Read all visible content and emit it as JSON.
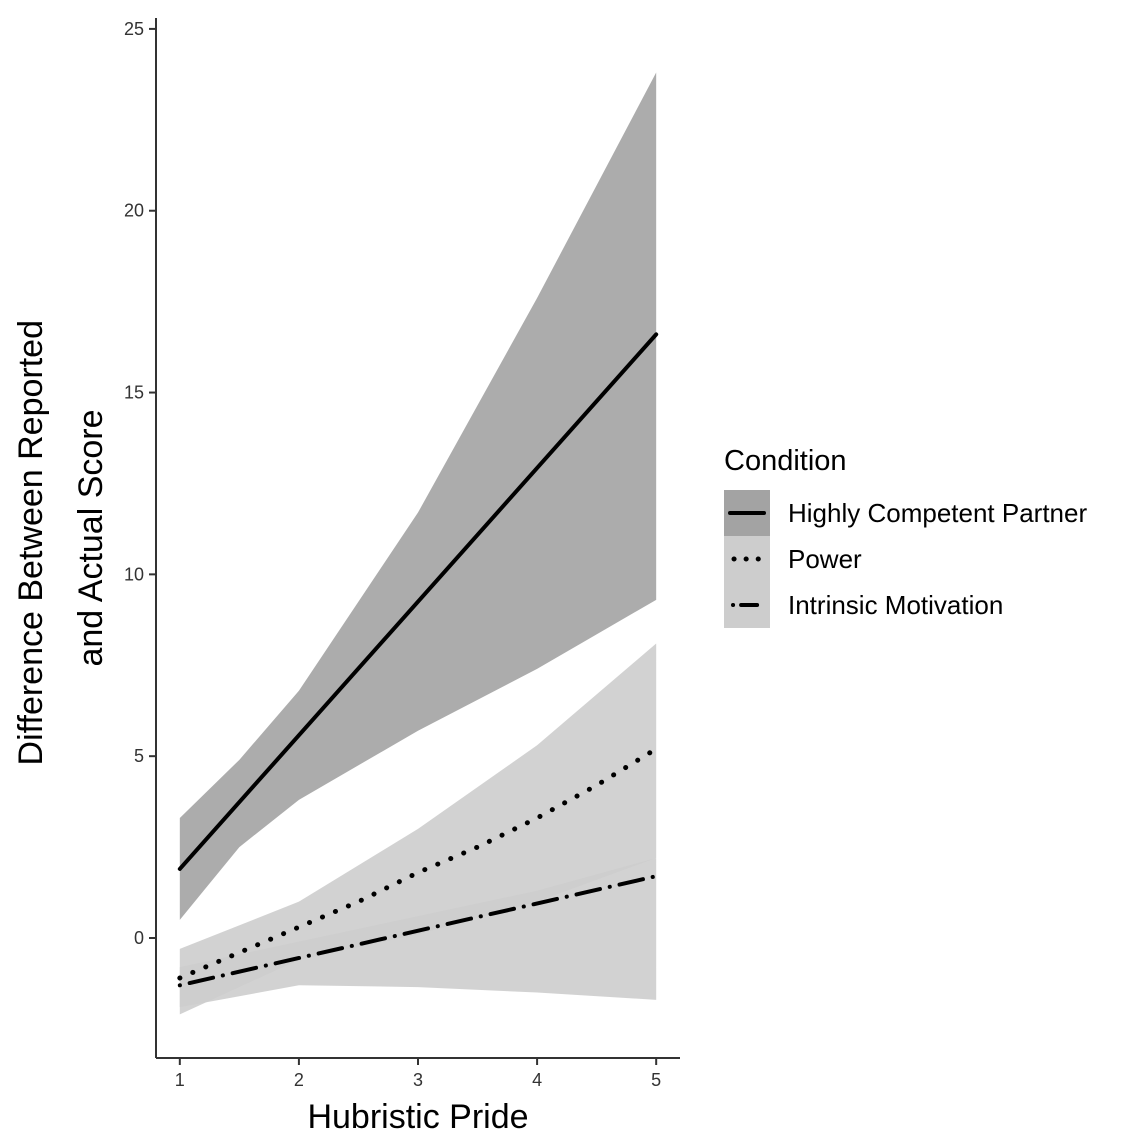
{
  "chart_data": {
    "type": "line",
    "title": "",
    "xlabel": "Hubristic Pride",
    "ylabel_lines": [
      "Difference Between Reported",
      "and Actual Score"
    ],
    "xlim": [
      0.8,
      5.2
    ],
    "ylim": [
      -3.3,
      25.3
    ],
    "x_ticks": [
      1,
      2,
      3,
      4,
      5
    ],
    "y_ticks": [
      0,
      5,
      10,
      15,
      20,
      25
    ],
    "grid": false,
    "legend": {
      "title": "Condition",
      "placement": "right"
    },
    "series": [
      {
        "name": "Highly Competent Partner",
        "linetype": "solid",
        "band_color": "#a3a3a3",
        "x": [
          1,
          5
        ],
        "y": [
          1.9,
          16.6
        ],
        "ci_x": [
          1,
          1.5,
          2,
          3,
          4,
          5
        ],
        "ci_lower": [
          0.5,
          2.5,
          3.8,
          5.7,
          7.4,
          9.3
        ],
        "ci_upper": [
          3.3,
          4.9,
          6.8,
          11.7,
          17.6,
          23.8
        ]
      },
      {
        "name": "Power",
        "linetype": "dotted",
        "band_color": "#cdcdcd",
        "x": [
          1,
          1.5,
          2,
          2.5,
          3,
          3.5,
          4,
          4.5,
          5
        ],
        "y": [
          -1.1,
          -0.4,
          0.3,
          1.0,
          1.8,
          2.5,
          3.3,
          4.2,
          5.2
        ],
        "ci_x": [
          1,
          2,
          3,
          4,
          5
        ],
        "ci_lower": [
          -2.1,
          -0.6,
          0.1,
          1.0,
          2.2
        ],
        "ci_upper": [
          -0.3,
          1.0,
          3.0,
          5.3,
          8.1
        ]
      },
      {
        "name": "Intrinsic Motivation",
        "linetype": "dotdash",
        "band_color": "#cdcdcd",
        "x": [
          1,
          5
        ],
        "y": [
          -1.3,
          1.7
        ],
        "ci_x": [
          1,
          2,
          3,
          4,
          5
        ],
        "ci_lower": [
          -1.9,
          -1.3,
          -1.35,
          -1.5,
          -1.7
        ],
        "ci_upper": [
          -0.8,
          -0.1,
          0.6,
          1.3,
          2.2
        ]
      }
    ]
  }
}
